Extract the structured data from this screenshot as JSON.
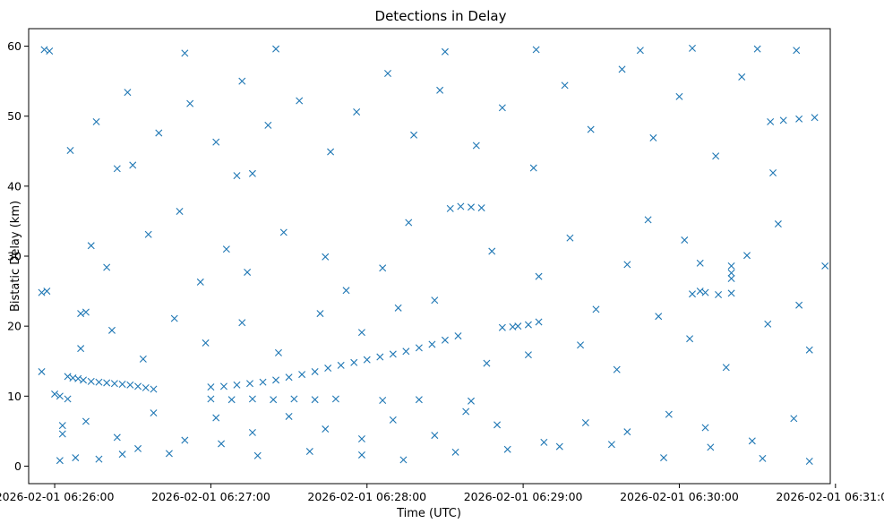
{
  "chart_data": {
    "type": "scatter",
    "title": "Detections in Delay",
    "xlabel": "Time (UTC)",
    "ylabel": "Bistatic Delay (km)",
    "xlim": [
      "2026-02-01 06:25:50",
      "2026-02-01 06:30:58"
    ],
    "ylim": [
      -2.5,
      62.5
    ],
    "x_ticks": [
      "2026-02-01 06:26:00",
      "2026-02-01 06:27:00",
      "2026-02-01 06:28:00",
      "2026-02-01 06:29:00",
      "2026-02-01 06:30:00",
      "2026-02-01 06:31:00"
    ],
    "y_ticks": [
      0,
      10,
      20,
      30,
      40,
      50,
      60
    ],
    "grid": false,
    "marker": "x",
    "color": "#1f77b4",
    "series": [
      {
        "points": [
          [
            "06:26:05",
            12.8
          ],
          [
            "06:26:07",
            12.6
          ],
          [
            "06:26:09",
            12.5
          ],
          [
            "06:26:11",
            12.3
          ],
          [
            "06:26:14",
            12.1
          ],
          [
            "06:26:17",
            12.0
          ],
          [
            "06:26:20",
            11.9
          ],
          [
            "06:26:23",
            11.8
          ],
          [
            "06:26:26",
            11.7
          ],
          [
            "06:26:29",
            11.6
          ],
          [
            "06:26:32",
            11.4
          ],
          [
            "06:26:35",
            11.2
          ],
          [
            "06:26:38",
            11.0
          ],
          [
            "06:27:00",
            11.3
          ],
          [
            "06:27:05",
            11.4
          ],
          [
            "06:27:10",
            11.6
          ],
          [
            "06:27:15",
            11.8
          ],
          [
            "06:27:20",
            12.0
          ],
          [
            "06:27:25",
            12.3
          ],
          [
            "06:27:30",
            12.7
          ],
          [
            "06:27:35",
            13.1
          ],
          [
            "06:27:40",
            13.5
          ],
          [
            "06:27:45",
            14.0
          ],
          [
            "06:27:50",
            14.4
          ],
          [
            "06:27:55",
            14.8
          ],
          [
            "06:28:00",
            15.2
          ],
          [
            "06:28:05",
            15.6
          ],
          [
            "06:28:10",
            16.0
          ],
          [
            "06:28:15",
            16.4
          ],
          [
            "06:28:20",
            16.9
          ],
          [
            "06:28:25",
            17.4
          ],
          [
            "06:28:30",
            18.0
          ],
          [
            "06:28:35",
            18.6
          ],
          [
            "06:27:00",
            9.6
          ],
          [
            "06:27:08",
            9.5
          ],
          [
            "06:27:16",
            9.6
          ],
          [
            "06:27:24",
            9.5
          ],
          [
            "06:27:32",
            9.6
          ],
          [
            "06:27:40",
            9.5
          ],
          [
            "06:27:48",
            9.6
          ],
          [
            "06:28:06",
            9.4
          ],
          [
            "06:28:20",
            9.5
          ],
          [
            "06:28:40",
            9.3
          ],
          [
            "06:28:52",
            19.8
          ],
          [
            "06:28:56",
            19.9
          ],
          [
            "06:29:02",
            20.2
          ],
          [
            "06:29:06",
            20.6
          ],
          [
            "06:28:58",
            20.0
          ],
          [
            "06:30:05",
            24.6
          ],
          [
            "06:30:10",
            24.8
          ],
          [
            "06:30:15",
            24.5
          ],
          [
            "06:30:20",
            24.7
          ],
          [
            "06:30:08",
            25.0
          ],
          [
            "06:30:08",
            29.0
          ],
          [
            "06:30:20",
            28.6
          ],
          [
            "06:30:20",
            27.6
          ],
          [
            "06:30:20",
            26.8
          ],
          [
            "06:30:40",
            49.4
          ],
          [
            "06:30:46",
            49.6
          ],
          [
            "06:30:52",
            49.8
          ],
          [
            "06:30:35",
            49.2
          ],
          [
            "06:27:10",
            41.5
          ],
          [
            "06:27:16",
            41.8
          ],
          [
            "06:26:30",
            43.0
          ],
          [
            "06:26:24",
            42.5
          ],
          [
            "06:28:32",
            36.8
          ],
          [
            "06:28:36",
            37.1
          ],
          [
            "06:28:40",
            37.0
          ],
          [
            "06:28:44",
            36.9
          ],
          [
            "06:25:55",
            24.8
          ],
          [
            "06:25:57",
            25.0
          ],
          [
            "06:26:10",
            21.8
          ],
          [
            "06:26:12",
            22.0
          ],
          [
            "06:25:56",
            59.5
          ],
          [
            "06:25:58",
            59.3
          ],
          [
            "06:26:50",
            59.0
          ],
          [
            "06:27:25",
            59.6
          ],
          [
            "06:28:30",
            59.2
          ],
          [
            "06:29:05",
            59.5
          ],
          [
            "06:29:45",
            59.4
          ],
          [
            "06:30:05",
            59.7
          ],
          [
            "06:30:30",
            59.6
          ],
          [
            "06:30:45",
            59.4
          ],
          [
            "06:25:55",
            13.5
          ],
          [
            "06:26:00",
            10.3
          ],
          [
            "06:26:02",
            10.0
          ],
          [
            "06:26:05",
            9.6
          ],
          [
            "06:26:03",
            5.8
          ],
          [
            "06:26:03",
            4.6
          ],
          [
            "06:26:02",
            0.8
          ],
          [
            "06:26:08",
            1.2
          ],
          [
            "06:26:17",
            1.0
          ],
          [
            "06:26:26",
            1.7
          ],
          [
            "06:26:32",
            2.5
          ],
          [
            "06:26:44",
            1.8
          ],
          [
            "06:27:04",
            3.2
          ],
          [
            "06:27:18",
            1.5
          ],
          [
            "06:27:38",
            2.1
          ],
          [
            "06:27:58",
            1.6
          ],
          [
            "06:28:14",
            0.9
          ],
          [
            "06:28:34",
            2.0
          ],
          [
            "06:28:54",
            2.4
          ],
          [
            "06:29:14",
            2.8
          ],
          [
            "06:29:34",
            3.1
          ],
          [
            "06:29:54",
            1.2
          ],
          [
            "06:30:12",
            2.7
          ],
          [
            "06:30:32",
            1.1
          ],
          [
            "06:30:50",
            0.7
          ],
          [
            "06:26:14",
            31.5
          ],
          [
            "06:26:20",
            28.4
          ],
          [
            "06:26:36",
            33.1
          ],
          [
            "06:26:48",
            36.4
          ],
          [
            "06:26:56",
            26.3
          ],
          [
            "06:27:06",
            31.0
          ],
          [
            "06:27:14",
            27.7
          ],
          [
            "06:27:28",
            33.4
          ],
          [
            "06:27:44",
            29.9
          ],
          [
            "06:27:52",
            25.1
          ],
          [
            "06:28:06",
            28.3
          ],
          [
            "06:28:16",
            34.8
          ],
          [
            "06:28:26",
            23.7
          ],
          [
            "06:28:48",
            30.7
          ],
          [
            "06:29:06",
            27.1
          ],
          [
            "06:29:18",
            32.6
          ],
          [
            "06:29:28",
            22.4
          ],
          [
            "06:29:40",
            28.8
          ],
          [
            "06:29:48",
            35.2
          ],
          [
            "06:30:02",
            32.3
          ],
          [
            "06:30:26",
            30.1
          ],
          [
            "06:30:38",
            34.6
          ],
          [
            "06:30:46",
            23.0
          ],
          [
            "06:30:56",
            28.6
          ],
          [
            "06:26:06",
            45.1
          ],
          [
            "06:26:16",
            49.2
          ],
          [
            "06:26:28",
            53.4
          ],
          [
            "06:26:40",
            47.6
          ],
          [
            "06:26:52",
            51.8
          ],
          [
            "06:27:02",
            46.3
          ],
          [
            "06:27:12",
            55.0
          ],
          [
            "06:27:22",
            48.7
          ],
          [
            "06:27:34",
            52.2
          ],
          [
            "06:27:46",
            44.9
          ],
          [
            "06:27:56",
            50.6
          ],
          [
            "06:28:08",
            56.1
          ],
          [
            "06:28:18",
            47.3
          ],
          [
            "06:28:28",
            53.7
          ],
          [
            "06:28:42",
            45.8
          ],
          [
            "06:28:52",
            51.2
          ],
          [
            "06:29:04",
            42.6
          ],
          [
            "06:29:16",
            54.4
          ],
          [
            "06:29:26",
            48.1
          ],
          [
            "06:29:38",
            56.7
          ],
          [
            "06:29:50",
            46.9
          ],
          [
            "06:30:00",
            52.8
          ],
          [
            "06:30:14",
            44.3
          ],
          [
            "06:30:24",
            55.6
          ],
          [
            "06:30:36",
            41.9
          ],
          [
            "06:26:10",
            16.8
          ],
          [
            "06:26:22",
            19.4
          ],
          [
            "06:26:34",
            15.3
          ],
          [
            "06:26:46",
            21.1
          ],
          [
            "06:26:58",
            17.6
          ],
          [
            "06:27:12",
            20.5
          ],
          [
            "06:27:26",
            16.2
          ],
          [
            "06:27:42",
            21.8
          ],
          [
            "06:27:58",
            19.1
          ],
          [
            "06:28:12",
            22.6
          ],
          [
            "06:28:46",
            14.7
          ],
          [
            "06:29:02",
            15.9
          ],
          [
            "06:29:22",
            17.3
          ],
          [
            "06:29:36",
            13.8
          ],
          [
            "06:29:52",
            21.4
          ],
          [
            "06:30:04",
            18.2
          ],
          [
            "06:30:18",
            14.1
          ],
          [
            "06:30:34",
            20.3
          ],
          [
            "06:30:50",
            16.6
          ],
          [
            "06:26:12",
            6.4
          ],
          [
            "06:26:24",
            4.1
          ],
          [
            "06:26:38",
            7.6
          ],
          [
            "06:26:50",
            3.7
          ],
          [
            "06:27:02",
            6.9
          ],
          [
            "06:27:16",
            4.8
          ],
          [
            "06:27:30",
            7.1
          ],
          [
            "06:27:44",
            5.3
          ],
          [
            "06:27:58",
            3.9
          ],
          [
            "06:28:10",
            6.6
          ],
          [
            "06:28:26",
            4.4
          ],
          [
            "06:28:38",
            7.8
          ],
          [
            "06:28:50",
            5.9
          ],
          [
            "06:29:08",
            3.4
          ],
          [
            "06:29:24",
            6.2
          ],
          [
            "06:29:40",
            4.9
          ],
          [
            "06:29:56",
            7.4
          ],
          [
            "06:30:10",
            5.5
          ],
          [
            "06:30:28",
            3.6
          ],
          [
            "06:30:44",
            6.8
          ]
        ]
      }
    ]
  }
}
